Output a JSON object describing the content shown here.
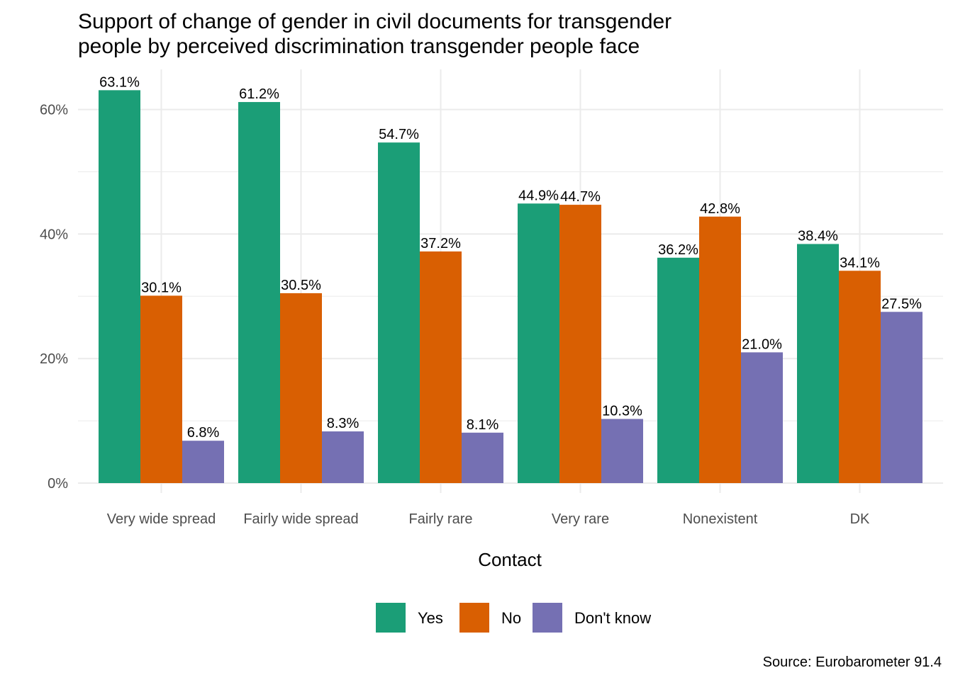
{
  "chart_data": {
    "type": "bar",
    "title_lines": [
      "Support of change of gender in civil documents for transgender",
      "people by perceived discrimination transgender people face"
    ],
    "xlabel": "Contact",
    "ylabel": "",
    "caption": "Source: Eurobarometer 91.4",
    "categories": [
      "Very wide spread",
      "Fairly wide spread",
      "Fairly rare",
      "Very rare",
      "Nonexistent",
      "DK"
    ],
    "series": [
      {
        "name": "Yes",
        "color": "#1b9e77",
        "values": [
          63.1,
          61.2,
          54.7,
          44.9,
          36.2,
          38.4
        ]
      },
      {
        "name": "No",
        "color": "#d95f02",
        "values": [
          30.1,
          30.5,
          37.2,
          44.7,
          42.8,
          34.1
        ]
      },
      {
        "name": "Don't know",
        "color": "#7570b3",
        "values": [
          6.8,
          8.3,
          8.1,
          10.3,
          21.0,
          27.5
        ]
      }
    ],
    "y_ticks": [
      0,
      20,
      40,
      60
    ],
    "y_tick_labels": [
      "0%",
      "20%",
      "40%",
      "60%"
    ],
    "ylim": [
      0,
      66
    ],
    "value_suffix": "%",
    "legend_position": "bottom",
    "grid": true
  }
}
